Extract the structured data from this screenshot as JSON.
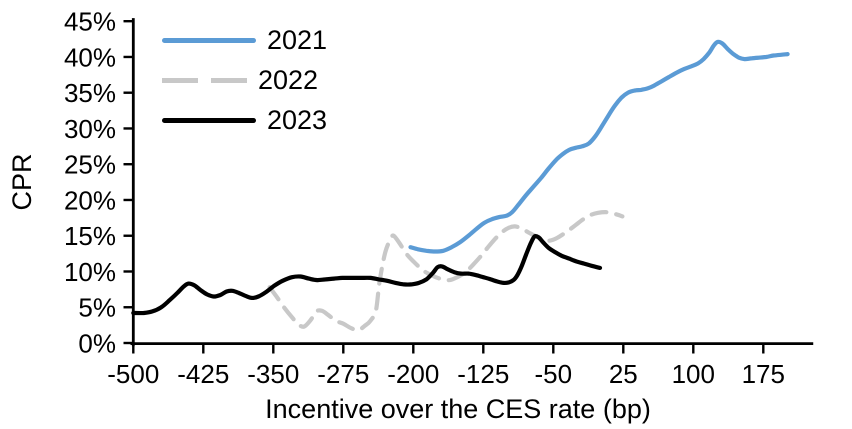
{
  "chart_data": {
    "type": "line",
    "title": "",
    "xlabel": "Incentive over the CES rate (bp)",
    "ylabel": "CPR",
    "x_ticks": [
      -500,
      -425,
      -350,
      -275,
      -200,
      -125,
      -50,
      25,
      100,
      175
    ],
    "x_tick_labels": [
      "-500",
      "-425",
      "-350",
      "-275",
      "-200",
      "-125",
      "-50",
      "25",
      "100",
      "175"
    ],
    "y_ticks": [
      0,
      5,
      10,
      15,
      20,
      25,
      30,
      35,
      40,
      45
    ],
    "y_tick_suffix": "%",
    "xlim": [
      -500,
      227
    ],
    "ylim": [
      0,
      45
    ],
    "grid": false,
    "legend_position": "top-left-inside",
    "series": [
      {
        "name": "2021",
        "color": "#5B9BD5",
        "style": "solid",
        "z": 1,
        "x": [
          -203,
          -195,
          -186,
          -177,
          -168,
          -159,
          -150,
          -141,
          -132,
          -124,
          -116,
          -108,
          -100,
          -94,
          -87,
          -79,
          -71,
          -63,
          -55,
          -47,
          -40,
          -33,
          -26,
          -19,
          -12,
          -5,
          2,
          9,
          16,
          23,
          30,
          37,
          44,
          51,
          58,
          66,
          74,
          82,
          90,
          98,
          105,
          111,
          117,
          122,
          126,
          131,
          137,
          143,
          149,
          155,
          162,
          170,
          178,
          186,
          194,
          201
        ],
        "y": [
          13.4,
          13.1,
          12.9,
          12.8,
          12.9,
          13.4,
          14.1,
          15.0,
          16.0,
          16.8,
          17.3,
          17.6,
          17.8,
          18.3,
          19.4,
          20.7,
          21.9,
          23.1,
          24.4,
          25.6,
          26.4,
          27.0,
          27.3,
          27.5,
          27.9,
          28.9,
          30.3,
          31.8,
          33.2,
          34.3,
          35.0,
          35.3,
          35.4,
          35.6,
          36.0,
          36.6,
          37.2,
          37.8,
          38.3,
          38.7,
          39.1,
          39.7,
          40.6,
          41.6,
          42.1,
          41.9,
          41.1,
          40.4,
          39.9,
          39.7,
          39.8,
          39.9,
          40.0,
          40.2,
          40.3,
          40.4
        ]
      },
      {
        "name": "2022",
        "color": "#C8C8C8",
        "style": "dashed",
        "z": 0,
        "x": [
          -354,
          -346,
          -338,
          -330,
          -323,
          -317,
          -310,
          -304,
          -298,
          -291,
          -283,
          -275,
          -267,
          -259,
          -252,
          -246,
          -240,
          -236,
          -230,
          -224,
          -221,
          -215,
          -207,
          -199,
          -191,
          -184,
          -176,
          -168,
          -161,
          -153,
          -145,
          -137,
          -128,
          -120,
          -112,
          -105,
          -98,
          -91,
          -84,
          -77,
          -70,
          -63,
          -56,
          -49,
          -42,
          -34,
          -26,
          -18,
          -10,
          -2,
          6,
          14,
          20,
          24
        ],
        "y": [
          7.8,
          6.4,
          4.9,
          3.6,
          2.6,
          2.3,
          3.2,
          4.4,
          4.5,
          3.9,
          3.1,
          2.7,
          2.1,
          1.8,
          2.4,
          3.1,
          4.6,
          8.7,
          12.7,
          14.6,
          15.0,
          14.0,
          12.4,
          11.3,
          10.3,
          9.7,
          9.2,
          8.9,
          8.8,
          9.2,
          9.8,
          10.8,
          12.1,
          13.4,
          14.6,
          15.5,
          16.1,
          16.3,
          16.0,
          15.5,
          15.0,
          14.6,
          14.3,
          14.5,
          15.0,
          15.7,
          16.5,
          17.3,
          17.9,
          18.2,
          18.3,
          18.1,
          17.9,
          17.7
        ]
      },
      {
        "name": "2023",
        "color": "#000000",
        "style": "solid",
        "z": 2,
        "x": [
          -500,
          -489,
          -480,
          -470,
          -461,
          -452,
          -446,
          -441,
          -435,
          -428,
          -421,
          -414,
          -407,
          -400,
          -394,
          -387,
          -380,
          -373,
          -366,
          -358,
          -349,
          -340,
          -330,
          -321,
          -312,
          -303,
          -294,
          -285,
          -276,
          -266,
          -256,
          -246,
          -237,
          -228,
          -219,
          -210,
          -202,
          -194,
          -186,
          -179,
          -174,
          -169,
          -163,
          -156,
          -149,
          -141,
          -133,
          -125,
          -117,
          -110,
          -103,
          -97,
          -91,
          -85,
          -79,
          -74,
          -70,
          -66,
          -61,
          -55,
          -48,
          -41,
          -33,
          -25,
          -17,
          -9,
          0
        ],
        "y": [
          4.2,
          4.2,
          4.4,
          5.0,
          6.0,
          7.1,
          7.9,
          8.3,
          8.1,
          7.4,
          6.8,
          6.5,
          6.7,
          7.2,
          7.3,
          7.0,
          6.6,
          6.3,
          6.5,
          7.1,
          8.0,
          8.7,
          9.2,
          9.3,
          9.0,
          8.8,
          8.9,
          9.0,
          9.1,
          9.1,
          9.1,
          9.1,
          8.9,
          8.7,
          8.4,
          8.2,
          8.2,
          8.4,
          8.9,
          9.8,
          10.6,
          10.7,
          10.3,
          9.9,
          9.7,
          9.7,
          9.5,
          9.2,
          8.9,
          8.6,
          8.4,
          8.5,
          9.0,
          10.4,
          12.4,
          14.0,
          14.9,
          14.8,
          14.1,
          13.3,
          12.7,
          12.2,
          11.8,
          11.4,
          11.1,
          10.8,
          10.5
        ]
      }
    ]
  },
  "colors": {
    "axis": "#000000",
    "text": "#000000",
    "background": "#FFFFFF",
    "accent_blue": "#5B9BD5",
    "dash_gray": "#C8C8C8"
  }
}
